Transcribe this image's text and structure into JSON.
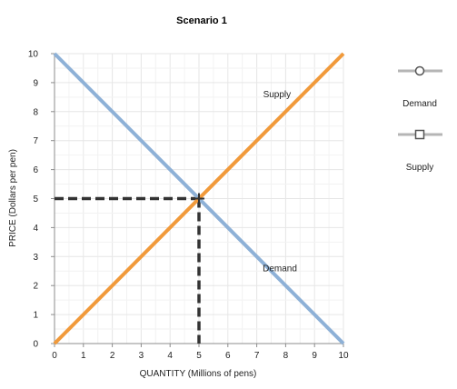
{
  "chart_data": {
    "type": "line",
    "title": "Scenario 1",
    "xlabel": "QUANTITY (Millions of pens)",
    "ylabel": "PRICE (Dollars per pen)",
    "xlim": [
      0,
      10
    ],
    "ylim": [
      0,
      10
    ],
    "x_ticks": [
      0,
      1,
      2,
      3,
      4,
      5,
      6,
      7,
      8,
      9,
      10
    ],
    "y_ticks": [
      0,
      1,
      2,
      3,
      4,
      5,
      6,
      7,
      8,
      9,
      10
    ],
    "grid": true,
    "legend": "right",
    "series": [
      {
        "name": "Demand",
        "color": "#8eb1d7",
        "marker": "circle",
        "x": [
          0,
          10
        ],
        "y": [
          10,
          0
        ]
      },
      {
        "name": "Supply",
        "color": "#f19a3b",
        "marker": "square",
        "x": [
          0,
          10
        ],
        "y": [
          0,
          10
        ]
      }
    ],
    "annotations": [
      {
        "text": "Supply",
        "x": 7.7,
        "y": 8.5
      },
      {
        "text": "Demand",
        "x": 7.8,
        "y": 2.5
      }
    ],
    "equilibrium": {
      "x": 5,
      "y": 5,
      "color": "#333333"
    }
  }
}
